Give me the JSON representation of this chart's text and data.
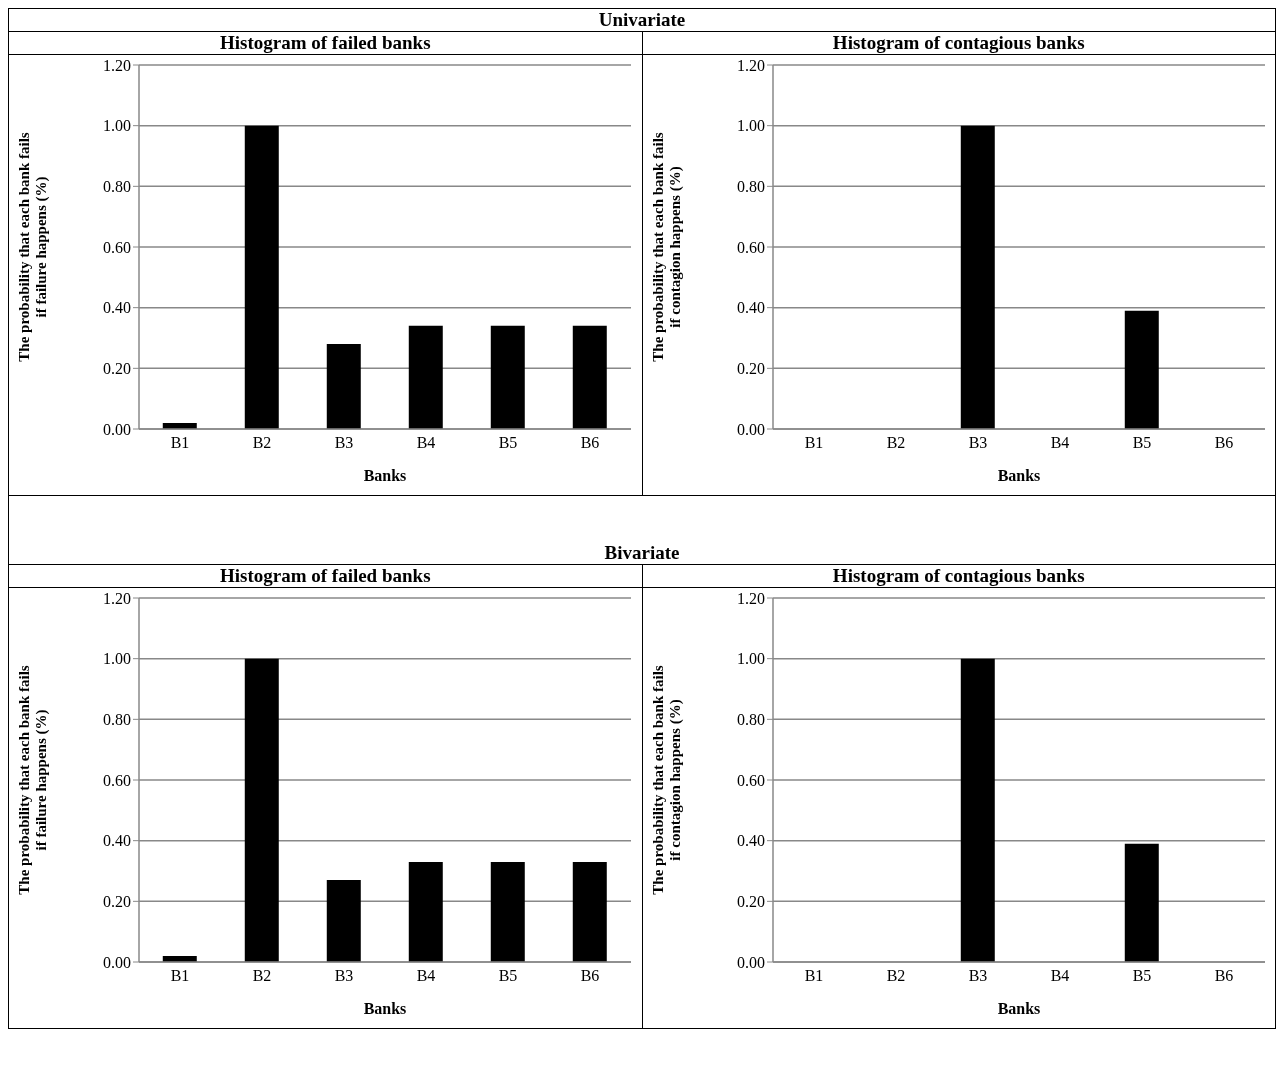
{
  "chart_data": [
    {
      "type": "bar",
      "annotations": [
        "Univariate"
      ],
      "title": "Histogram of failed banks",
      "xlabel": "Banks",
      "ylabel": "The probability that each bank fails if failure happens (%)",
      "categories": [
        "B1",
        "B2",
        "B3",
        "B4",
        "B5",
        "B6"
      ],
      "values": [
        0.02,
        1.0,
        0.28,
        0.34,
        0.34,
        0.34
      ],
      "color": "#000000",
      "ylim": [
        0,
        1.2
      ],
      "yticks": [
        {
          "value": 0,
          "label": "0.00"
        },
        {
          "value": 0.2,
          "label": "0.20"
        },
        {
          "value": 0.4,
          "label": "0.40"
        },
        {
          "value": 0.6,
          "label": "0.60"
        },
        {
          "value": 0.8,
          "label": "0.80"
        },
        {
          "value": 1.0,
          "label": "1.00"
        },
        {
          "value": 1.2,
          "label": "1.20"
        }
      ],
      "grid": "y"
    },
    {
      "type": "bar",
      "title": "Histogram of contagious banks",
      "xlabel": "Banks",
      "ylabel": "The probability that each bank fails if contagion happens (%)",
      "categories": [
        "B1",
        "B2",
        "B3",
        "B4",
        "B5",
        "B6"
      ],
      "values": [
        0,
        0,
        1.0,
        0,
        0.39,
        0
      ],
      "color": "#000000",
      "ylim": [
        0,
        1.2
      ],
      "yticks": [
        {
          "value": 0,
          "label": "0.00"
        },
        {
          "value": 0.2,
          "label": "0.20"
        },
        {
          "value": 0.4,
          "label": "0.40"
        },
        {
          "value": 0.6,
          "label": "0.60"
        },
        {
          "value": 0.8,
          "label": "0.80"
        },
        {
          "value": 1.0,
          "label": "1.00"
        },
        {
          "value": 1.2,
          "label": "1.20"
        }
      ],
      "grid": "y"
    },
    {
      "type": "bar",
      "annotations": [
        "Bivariate"
      ],
      "title": "Histogram of failed banks",
      "xlabel": "Banks",
      "ylabel": "The probability that each bank fails if failure happens (%)",
      "categories": [
        "B1",
        "B2",
        "B3",
        "B4",
        "B5",
        "B6"
      ],
      "values": [
        0.02,
        1.0,
        0.27,
        0.33,
        0.33,
        0.33
      ],
      "color": "#000000",
      "ylim": [
        0,
        1.2
      ],
      "yticks": [
        {
          "value": 0,
          "label": "0.00"
        },
        {
          "value": 0.2,
          "label": "0.20"
        },
        {
          "value": 0.4,
          "label": "0.40"
        },
        {
          "value": 0.6,
          "label": "0.60"
        },
        {
          "value": 0.8,
          "label": "0.80"
        },
        {
          "value": 1.0,
          "label": "1.00"
        },
        {
          "value": 1.2,
          "label": "1.20"
        }
      ],
      "grid": "y"
    },
    {
      "type": "bar",
      "title": "Histogram of contagious banks",
      "xlabel": "Banks",
      "ylabel": "The probability that each bank fails if contagion happens (%)",
      "categories": [
        "B1",
        "B2",
        "B3",
        "B4",
        "B5",
        "B6"
      ],
      "values": [
        0,
        0,
        1.0,
        0,
        0.39,
        0
      ],
      "color": "#000000",
      "ylim": [
        0,
        1.2
      ],
      "yticks": [
        {
          "value": 0,
          "label": "0.00"
        },
        {
          "value": 0.2,
          "label": "0.20"
        },
        {
          "value": 0.4,
          "label": "0.40"
        },
        {
          "value": 0.6,
          "label": "0.60"
        },
        {
          "value": 0.8,
          "label": "0.80"
        },
        {
          "value": 1.0,
          "label": "1.00"
        },
        {
          "value": 1.2,
          "label": "1.20"
        }
      ],
      "grid": "y"
    }
  ]
}
